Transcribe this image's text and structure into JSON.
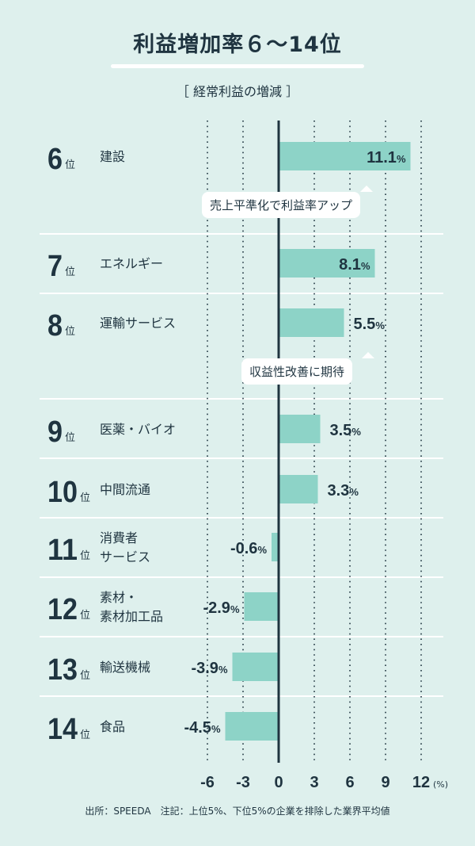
{
  "title": "利益増加率６〜14位",
  "subtitle": "［ 経常利益の増減 ］",
  "footer": "出所：SPEEDA　注記：上位5%、下位5%の企業を排除した業界平均値",
  "colors": {
    "background": "#def0ed",
    "bar": "#8dd3c7",
    "text": "#1f3440",
    "separator": "#ffffff"
  },
  "chart_data": {
    "type": "bar",
    "orientation": "horizontal",
    "xlim": [
      -6,
      12
    ],
    "xticks": [
      "-6",
      "-3",
      "0",
      "3",
      "6",
      "9",
      "12"
    ],
    "xunit": "(%)",
    "grid": true,
    "rows": [
      {
        "rank": "6",
        "rank_suffix": "位",
        "category": "建設",
        "value": 11.1,
        "label": "11.1",
        "unit": "%"
      },
      {
        "rank": "7",
        "rank_suffix": "位",
        "category": "エネルギー",
        "value": 8.1,
        "label": "8.1",
        "unit": "%"
      },
      {
        "rank": "8",
        "rank_suffix": "位",
        "category": "運輸サービス",
        "value": 5.5,
        "label": "5.5",
        "unit": "%"
      },
      {
        "rank": "9",
        "rank_suffix": "位",
        "category": "医薬・バイオ",
        "value": 3.5,
        "label": "3.5",
        "unit": "%"
      },
      {
        "rank": "10",
        "rank_suffix": "位",
        "category": "中間流通",
        "value": 3.3,
        "label": "3.3",
        "unit": "%"
      },
      {
        "rank": "11",
        "rank_suffix": "位",
        "category": "消費者\nサービス",
        "value": -0.6,
        "label": "-0.6",
        "unit": "%"
      },
      {
        "rank": "12",
        "rank_suffix": "位",
        "category": "素材・\n素材加工品",
        "value": -2.9,
        "label": "-2.9",
        "unit": "%"
      },
      {
        "rank": "13",
        "rank_suffix": "位",
        "category": "輸送機械",
        "value": -3.9,
        "label": "-3.9",
        "unit": "%"
      },
      {
        "rank": "14",
        "rank_suffix": "位",
        "category": "食品",
        "value": -4.5,
        "label": "-4.5",
        "unit": "%"
      }
    ],
    "annotations": [
      {
        "text": "売上平準化で利益率アップ",
        "after_rank": "6"
      },
      {
        "text": "収益性改善に期待",
        "after_rank": "8"
      }
    ]
  }
}
